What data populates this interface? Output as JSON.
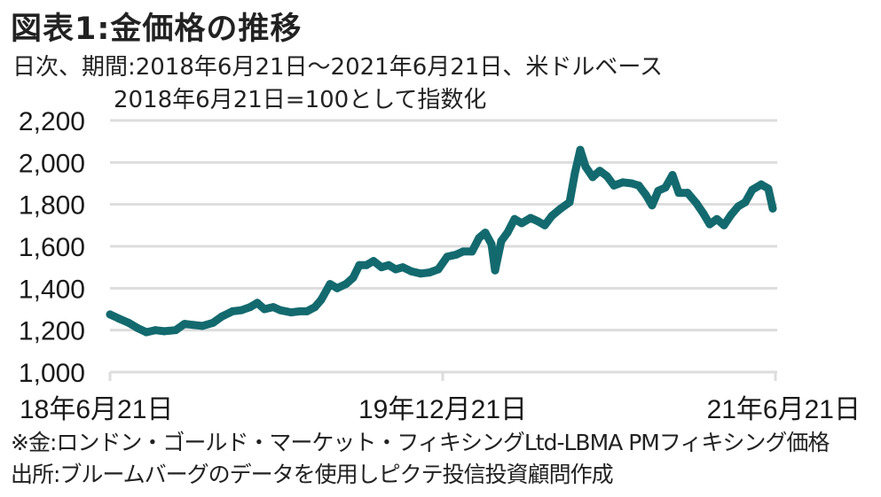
{
  "header": {
    "title": "図表1:金価格の推移",
    "subtitle_line1": "日次、期間:2018年6月21日～2021年6月21日、米ドルベース",
    "subtitle_line2": "2018年6月21日=100として指数化"
  },
  "footer": {
    "note": "※金:ロンドン・ゴールド・マーケット・フィキシングLtd-LBMA PMフィキシング価格",
    "source": "出所:ブルームバーグのデータを使用しピクテ投信投資顧問作成"
  },
  "chart_data": {
    "type": "line",
    "title": "図表1:金価格の推移",
    "xlabel": "",
    "ylabel": "",
    "ylim": [
      1000,
      2200
    ],
    "yticks": [
      1000,
      1200,
      1400,
      1600,
      1800,
      2000,
      2200
    ],
    "ytick_labels": [
      "1,000",
      "1,200",
      "1,400",
      "1,600",
      "1,800",
      "2,000",
      "2,200"
    ],
    "xlim_years_from_start": [
      0,
      3
    ],
    "xticks_years_from_start": [
      0,
      1.5,
      3
    ],
    "xtick_labels": [
      "18年6月21日",
      "19年12月21日",
      "21年6月21日"
    ],
    "grid": true,
    "line_color": "#136a6e",
    "grid_color": "#dddddd",
    "series": [
      {
        "name": "金価格",
        "x_years_from_start": [
          0,
          0.04,
          0.084,
          0.124,
          0.164,
          0.204,
          0.244,
          0.296,
          0.336,
          0.376,
          0.416,
          0.464,
          0.504,
          0.552,
          0.592,
          0.632,
          0.664,
          0.696,
          0.736,
          0.768,
          0.816,
          0.856,
          0.888,
          0.924,
          0.952,
          0.992,
          1.024,
          1.064,
          1.096,
          1.124,
          1.156,
          1.188,
          1.224,
          1.256,
          1.288,
          1.32,
          1.36,
          1.4,
          1.44,
          1.48,
          1.52,
          1.56,
          1.592,
          1.632,
          1.664,
          1.692,
          1.72,
          1.736,
          1.764,
          1.792,
          1.824,
          1.856,
          1.896,
          1.928,
          1.96,
          1.992,
          2.032,
          2.072,
          2.096,
          2.12,
          2.144,
          2.176,
          2.208,
          2.24,
          2.272,
          2.312,
          2.352,
          2.384,
          2.416,
          2.444,
          2.472,
          2.504,
          2.536,
          2.564,
          2.604,
          2.604,
          2.644,
          2.676,
          2.704,
          2.736,
          2.768,
          2.8,
          2.832,
          2.864,
          2.896,
          2.936,
          2.968,
          2.988
        ],
        "values": [
          1275,
          1255,
          1235,
          1210,
          1190,
          1200,
          1195,
          1200,
          1230,
          1225,
          1220,
          1235,
          1265,
          1290,
          1295,
          1310,
          1330,
          1300,
          1310,
          1295,
          1285,
          1290,
          1290,
          1310,
          1345,
          1420,
          1400,
          1420,
          1450,
          1510,
          1510,
          1530,
          1500,
          1510,
          1490,
          1500,
          1480,
          1470,
          1475,
          1490,
          1550,
          1560,
          1575,
          1575,
          1640,
          1665,
          1610,
          1485,
          1625,
          1665,
          1730,
          1710,
          1735,
          1720,
          1700,
          1745,
          1780,
          1810,
          1950,
          2060,
          1980,
          1930,
          1960,
          1935,
          1890,
          1905,
          1900,
          1890,
          1845,
          1795,
          1865,
          1880,
          1940,
          1855,
          1855,
          1855,
          1805,
          1755,
          1705,
          1730,
          1700,
          1750,
          1790,
          1810,
          1870,
          1895,
          1875,
          1780
        ]
      }
    ]
  }
}
